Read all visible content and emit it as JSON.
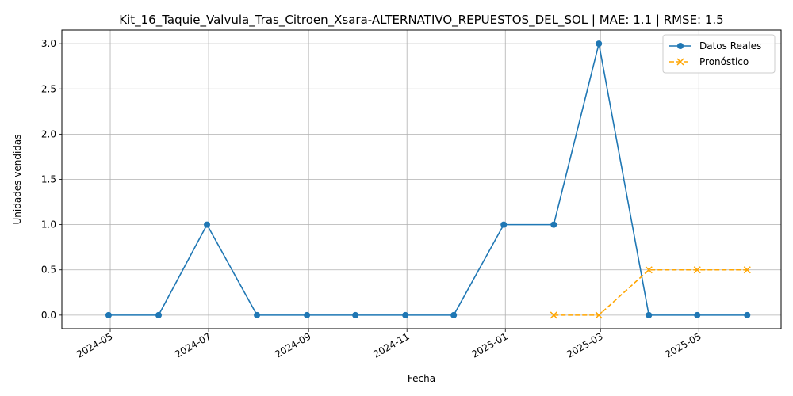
{
  "chart_data": {
    "type": "line",
    "title": "Kit_16_Taquie_Valvula_Tras_Citroen_Xsara-ALTERNATIVO_REPUESTOS_DEL_SOL | MAE: 1.1 | RMSE: 1.5",
    "xlabel": "Fecha",
    "ylabel": "Unidades vendidas",
    "ylim": [
      -0.15,
      3.15
    ],
    "xlim": [
      "2024-04-01",
      "2025-06-21"
    ],
    "x_ticks": [
      "2024-05",
      "2024-07",
      "2024-09",
      "2024-11",
      "2025-01",
      "2025-03",
      "2025-05"
    ],
    "y_ticks": [
      "0.0",
      "0.5",
      "1.0",
      "1.5",
      "2.0",
      "2.5",
      "3.0"
    ],
    "grid": true,
    "legend_position": "top-right",
    "series": [
      {
        "name": "Datos Reales",
        "color": "#1f77b4",
        "linestyle": "solid",
        "marker": "circle",
        "x": [
          "2024-04-30",
          "2024-05-31",
          "2024-06-30",
          "2024-07-31",
          "2024-08-31",
          "2024-09-30",
          "2024-10-31",
          "2024-11-30",
          "2024-12-31",
          "2025-01-31",
          "2025-02-28",
          "2025-03-31",
          "2025-04-30",
          "2025-05-31"
        ],
        "values": [
          0,
          0,
          1,
          0,
          0,
          0,
          0,
          0,
          1,
          1,
          3,
          0,
          0,
          0
        ]
      },
      {
        "name": "Pronóstico",
        "color": "#ffa500",
        "linestyle": "dashed",
        "marker": "x",
        "x": [
          "2025-01-31",
          "2025-02-28",
          "2025-03-31",
          "2025-04-30",
          "2025-05-31"
        ],
        "values": [
          0,
          0,
          0.5,
          0.5,
          0.5
        ]
      }
    ]
  }
}
